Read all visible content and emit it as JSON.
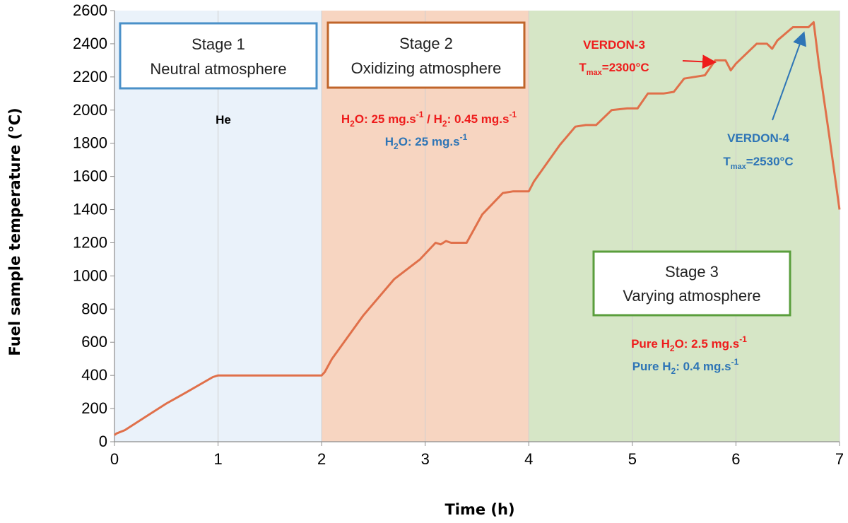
{
  "chart_data": {
    "type": "line",
    "xlabel": "Time (h)",
    "ylabel": "Fuel sample temperature (°C)",
    "xlim": [
      0,
      7
    ],
    "ylim": [
      0,
      2600
    ],
    "xticks": [
      "0",
      "1",
      "2",
      "3",
      "4",
      "5",
      "6",
      "7"
    ],
    "yticks": [
      "0",
      "200",
      "400",
      "600",
      "800",
      "1000",
      "1200",
      "1400",
      "1600",
      "1800",
      "2000",
      "2200",
      "2400",
      "2600"
    ],
    "grid": "vertical",
    "series": [
      {
        "color": "#e0704a",
        "x": [
          0,
          0.02,
          0.1,
          0.3,
          0.5,
          0.7,
          0.95,
          1.0,
          1.1,
          1.5,
          1.9,
          2.0,
          2.03,
          2.1,
          2.4,
          2.7,
          2.95,
          3.1,
          3.15,
          3.2,
          3.25,
          3.4,
          3.55,
          3.75,
          3.85,
          4.0,
          4.05,
          4.3,
          4.45,
          4.55,
          4.65,
          4.8,
          4.95,
          5.05,
          5.15,
          5.3,
          5.4,
          5.5,
          5.6,
          5.7,
          5.8,
          5.9,
          5.95,
          6.0,
          6.2,
          6.3,
          6.35,
          6.4,
          6.55,
          6.7,
          6.75,
          6.8,
          6.9,
          7.0
        ],
        "values": [
          40,
          50,
          70,
          150,
          230,
          300,
          390,
          400,
          400,
          400,
          400,
          400,
          420,
          500,
          760,
          980,
          1100,
          1200,
          1190,
          1210,
          1200,
          1200,
          1370,
          1500,
          1510,
          1510,
          1570,
          1790,
          1900,
          1910,
          1910,
          2000,
          2010,
          2010,
          2100,
          2100,
          2110,
          2190,
          2200,
          2210,
          2300,
          2300,
          2240,
          2280,
          2400,
          2400,
          2370,
          2420,
          2500,
          2500,
          2530,
          2280,
          1850,
          1400
        ]
      }
    ],
    "stage_bands": [
      {
        "from": 0,
        "to": 2,
        "color": "#eaf2fa"
      },
      {
        "from": 2,
        "to": 4,
        "color": "#f7d5c1"
      },
      {
        "from": 4,
        "to": 7,
        "color": "#d6e6c6"
      }
    ]
  },
  "stages": [
    {
      "line1": "Stage 1",
      "line2": "Neutral atmosphere",
      "border": "#4a90c8"
    },
    {
      "line1": "Stage 2",
      "line2": "Oxidizing atmosphere",
      "border": "#c0652a"
    },
    {
      "line1": "Stage 3",
      "line2": "Varying atmosphere",
      "border": "#5a9e3c"
    }
  ],
  "annotations": {
    "he": "He",
    "stage2_red": {
      "a": "H",
      "b": "2",
      "c": "O: 25 mg.s",
      "d": "-1",
      "e": " / H",
      "f": "2",
      "g": ": 0.45 mg.s",
      "h": "-1"
    },
    "stage2_blue": {
      "a": "H",
      "b": "2",
      "c": "O: 25 mg.s",
      "d": "-1"
    },
    "verdon3": {
      "name": "VERDON-3",
      "t": "T",
      "sub": "max",
      "val": "=2300°C"
    },
    "verdon4": {
      "name": "VERDON-4",
      "t": "T",
      "sub": "max",
      "val": "=2530°C"
    },
    "stage3_red": {
      "a": "Pure  H",
      "b": "2",
      "c": "O: 2.5 mg.s",
      "d": "-1"
    },
    "stage3_blue": {
      "a": "Pure  H",
      "b": "2",
      "c": ": 0.4 mg.s",
      "d": "-1"
    }
  },
  "colors": {
    "red_text": "#ee1c1c",
    "blue_text": "#2e75b6",
    "curve": "#e0704a"
  }
}
